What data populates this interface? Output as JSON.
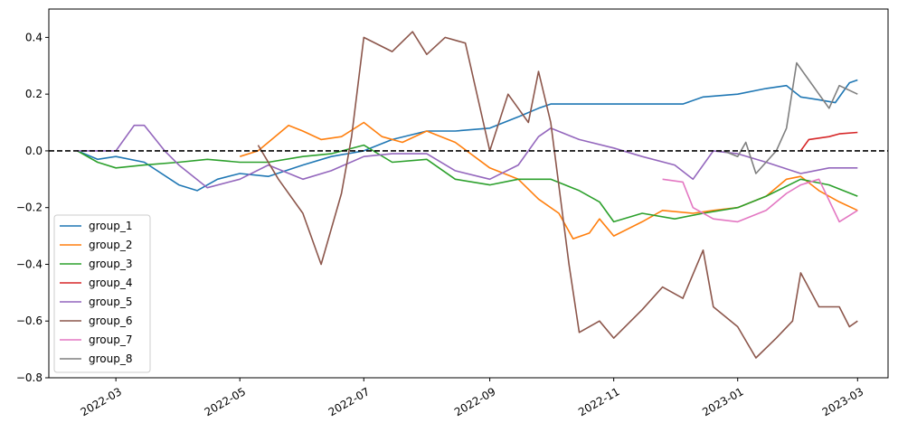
{
  "chart_data": {
    "type": "line",
    "title": "",
    "xlabel": "",
    "ylabel": "",
    "x_range": [
      "2022-01-27",
      "2023-03-16"
    ],
    "ylim": [
      -0.8,
      0.5
    ],
    "grid": false,
    "legend_position": "lower-left",
    "x_ticks": [
      {
        "date": "2022-03-01",
        "label": "2022-03"
      },
      {
        "date": "2022-05-01",
        "label": "2022-05"
      },
      {
        "date": "2022-07-01",
        "label": "2022-07"
      },
      {
        "date": "2022-09-01",
        "label": "2022-09"
      },
      {
        "date": "2022-11-01",
        "label": "2022-11"
      },
      {
        "date": "2023-01-01",
        "label": "2023-01"
      },
      {
        "date": "2023-03-01",
        "label": "2023-03"
      }
    ],
    "y_ticks": [
      {
        "value": 0.4,
        "label": "0.4"
      },
      {
        "value": 0.2,
        "label": "0.2"
      },
      {
        "value": 0.0,
        "label": "0.0"
      },
      {
        "value": -0.2,
        "label": "−0.2"
      },
      {
        "value": -0.4,
        "label": "−0.4"
      },
      {
        "value": -0.6,
        "label": "−0.6"
      },
      {
        "value": -0.8,
        "label": "−0.8"
      }
    ],
    "reference_line": {
      "value": 0.0,
      "style": "dashed",
      "color": "#000000"
    },
    "series": [
      {
        "name": "group_1",
        "color": "#1f77b4",
        "points": [
          [
            "2022-02-10",
            0.0
          ],
          [
            "2022-02-20",
            -0.03
          ],
          [
            "2022-03-01",
            -0.02
          ],
          [
            "2022-03-15",
            -0.04
          ],
          [
            "2022-04-01",
            -0.12
          ],
          [
            "2022-04-10",
            -0.14
          ],
          [
            "2022-04-20",
            -0.1
          ],
          [
            "2022-05-01",
            -0.08
          ],
          [
            "2022-05-15",
            -0.09
          ],
          [
            "2022-06-01",
            -0.05
          ],
          [
            "2022-06-15",
            -0.02
          ],
          [
            "2022-07-01",
            0.0
          ],
          [
            "2022-07-15",
            0.04
          ],
          [
            "2022-08-01",
            0.07
          ],
          [
            "2022-08-15",
            0.07
          ],
          [
            "2022-09-01",
            0.08
          ],
          [
            "2022-09-15",
            0.12
          ],
          [
            "2022-09-25",
            0.15
          ],
          [
            "2022-10-01",
            0.165
          ],
          [
            "2022-12-05",
            0.165
          ],
          [
            "2022-12-15",
            0.19
          ],
          [
            "2023-01-01",
            0.2
          ],
          [
            "2023-01-15",
            0.22
          ],
          [
            "2023-01-25",
            0.23
          ],
          [
            "2023-02-01",
            0.19
          ],
          [
            "2023-02-10",
            0.18
          ],
          [
            "2023-02-18",
            0.17
          ],
          [
            "2023-02-25",
            0.24
          ],
          [
            "2023-03-01",
            0.25
          ]
        ]
      },
      {
        "name": "group_2",
        "color": "#ff7f0e",
        "points": [
          [
            "2022-05-01",
            -0.02
          ],
          [
            "2022-05-10",
            0.0
          ],
          [
            "2022-05-20",
            0.06
          ],
          [
            "2022-05-25",
            0.09
          ],
          [
            "2022-06-01",
            0.07
          ],
          [
            "2022-06-10",
            0.04
          ],
          [
            "2022-06-20",
            0.05
          ],
          [
            "2022-07-01",
            0.1
          ],
          [
            "2022-07-10",
            0.05
          ],
          [
            "2022-07-20",
            0.03
          ],
          [
            "2022-08-01",
            0.07
          ],
          [
            "2022-08-15",
            0.03
          ],
          [
            "2022-09-01",
            -0.06
          ],
          [
            "2022-09-15",
            -0.1
          ],
          [
            "2022-09-25",
            -0.17
          ],
          [
            "2022-10-05",
            -0.22
          ],
          [
            "2022-10-12",
            -0.31
          ],
          [
            "2022-10-20",
            -0.29
          ],
          [
            "2022-10-25",
            -0.24
          ],
          [
            "2022-11-01",
            -0.3
          ],
          [
            "2022-11-15",
            -0.25
          ],
          [
            "2022-11-25",
            -0.21
          ],
          [
            "2022-12-10",
            -0.22
          ],
          [
            "2022-12-20",
            -0.21
          ],
          [
            "2023-01-01",
            -0.2
          ],
          [
            "2023-01-15",
            -0.16
          ],
          [
            "2023-01-25",
            -0.1
          ],
          [
            "2023-02-01",
            -0.09
          ],
          [
            "2023-02-10",
            -0.14
          ],
          [
            "2023-02-20",
            -0.18
          ],
          [
            "2023-03-01",
            -0.21
          ]
        ]
      },
      {
        "name": "group_3",
        "color": "#2ca02c",
        "points": [
          [
            "2022-02-10",
            0.0
          ],
          [
            "2022-02-20",
            -0.04
          ],
          [
            "2022-03-01",
            -0.06
          ],
          [
            "2022-03-15",
            -0.05
          ],
          [
            "2022-04-01",
            -0.04
          ],
          [
            "2022-04-15",
            -0.03
          ],
          [
            "2022-05-01",
            -0.04
          ],
          [
            "2022-05-15",
            -0.04
          ],
          [
            "2022-06-01",
            -0.02
          ],
          [
            "2022-06-15",
            -0.01
          ],
          [
            "2022-07-01",
            0.02
          ],
          [
            "2022-07-15",
            -0.04
          ],
          [
            "2022-08-01",
            -0.03
          ],
          [
            "2022-08-15",
            -0.1
          ],
          [
            "2022-09-01",
            -0.12
          ],
          [
            "2022-09-15",
            -0.1
          ],
          [
            "2022-10-01",
            -0.1
          ],
          [
            "2022-10-15",
            -0.14
          ],
          [
            "2022-10-25",
            -0.18
          ],
          [
            "2022-11-01",
            -0.25
          ],
          [
            "2022-11-15",
            -0.22
          ],
          [
            "2022-12-01",
            -0.24
          ],
          [
            "2022-12-15",
            -0.22
          ],
          [
            "2023-01-01",
            -0.2
          ],
          [
            "2023-01-15",
            -0.16
          ],
          [
            "2023-02-01",
            -0.1
          ],
          [
            "2023-02-15",
            -0.12
          ],
          [
            "2023-03-01",
            -0.16
          ]
        ]
      },
      {
        "name": "group_4",
        "color": "#d62728",
        "points": [
          [
            "2023-02-01",
            0.0
          ],
          [
            "2023-02-05",
            0.04
          ],
          [
            "2023-02-15",
            0.05
          ],
          [
            "2023-02-20",
            0.06
          ],
          [
            "2023-03-01",
            0.065
          ]
        ]
      },
      {
        "name": "group_5",
        "color": "#9467bd",
        "points": [
          [
            "2022-02-10",
            0.0
          ],
          [
            "2022-03-01",
            0.0
          ],
          [
            "2022-03-10",
            0.09
          ],
          [
            "2022-03-15",
            0.09
          ],
          [
            "2022-03-25",
            0.0
          ],
          [
            "2022-04-01",
            -0.05
          ],
          [
            "2022-04-15",
            -0.13
          ],
          [
            "2022-05-01",
            -0.1
          ],
          [
            "2022-05-15",
            -0.05
          ],
          [
            "2022-06-01",
            -0.1
          ],
          [
            "2022-06-15",
            -0.07
          ],
          [
            "2022-07-01",
            -0.02
          ],
          [
            "2022-07-15",
            -0.01
          ],
          [
            "2022-08-01",
            -0.01
          ],
          [
            "2022-08-15",
            -0.07
          ],
          [
            "2022-09-01",
            -0.1
          ],
          [
            "2022-09-15",
            -0.05
          ],
          [
            "2022-09-25",
            0.05
          ],
          [
            "2022-10-01",
            0.08
          ],
          [
            "2022-10-15",
            0.04
          ],
          [
            "2022-11-01",
            0.01
          ],
          [
            "2022-11-15",
            -0.02
          ],
          [
            "2022-12-01",
            -0.05
          ],
          [
            "2022-12-10",
            -0.1
          ],
          [
            "2022-12-20",
            0.0
          ],
          [
            "2023-01-01",
            -0.01
          ],
          [
            "2023-01-15",
            -0.04
          ],
          [
            "2023-02-01",
            -0.08
          ],
          [
            "2023-02-15",
            -0.06
          ],
          [
            "2023-03-01",
            -0.06
          ]
        ]
      },
      {
        "name": "group_6",
        "color": "#8c564b",
        "points": [
          [
            "2022-05-10",
            0.02
          ],
          [
            "2022-05-20",
            -0.1
          ],
          [
            "2022-06-01",
            -0.22
          ],
          [
            "2022-06-10",
            -0.4
          ],
          [
            "2022-06-20",
            -0.15
          ],
          [
            "2022-06-25",
            0.05
          ],
          [
            "2022-07-01",
            0.4
          ],
          [
            "2022-07-15",
            0.35
          ],
          [
            "2022-07-25",
            0.42
          ],
          [
            "2022-08-01",
            0.34
          ],
          [
            "2022-08-10",
            0.4
          ],
          [
            "2022-08-20",
            0.38
          ],
          [
            "2022-09-01",
            0.0
          ],
          [
            "2022-09-10",
            0.2
          ],
          [
            "2022-09-20",
            0.1
          ],
          [
            "2022-09-25",
            0.28
          ],
          [
            "2022-10-01",
            0.1
          ],
          [
            "2022-10-10",
            -0.4
          ],
          [
            "2022-10-15",
            -0.64
          ],
          [
            "2022-10-25",
            -0.6
          ],
          [
            "2022-11-01",
            -0.66
          ],
          [
            "2022-11-15",
            -0.56
          ],
          [
            "2022-11-25",
            -0.48
          ],
          [
            "2022-12-05",
            -0.52
          ],
          [
            "2022-12-15",
            -0.35
          ],
          [
            "2022-12-20",
            -0.55
          ],
          [
            "2023-01-01",
            -0.62
          ],
          [
            "2023-01-10",
            -0.73
          ],
          [
            "2023-01-20",
            -0.66
          ],
          [
            "2023-01-28",
            -0.6
          ],
          [
            "2023-02-01",
            -0.43
          ],
          [
            "2023-02-10",
            -0.55
          ],
          [
            "2023-02-20",
            -0.55
          ],
          [
            "2023-02-25",
            -0.62
          ],
          [
            "2023-03-01",
            -0.6
          ]
        ]
      },
      {
        "name": "group_7",
        "color": "#e377c2",
        "points": [
          [
            "2022-11-25",
            -0.1
          ],
          [
            "2022-12-05",
            -0.11
          ],
          [
            "2022-12-10",
            -0.2
          ],
          [
            "2022-12-20",
            -0.24
          ],
          [
            "2023-01-01",
            -0.25
          ],
          [
            "2023-01-15",
            -0.21
          ],
          [
            "2023-01-25",
            -0.15
          ],
          [
            "2023-02-01",
            -0.12
          ],
          [
            "2023-02-10",
            -0.1
          ],
          [
            "2023-02-20",
            -0.25
          ],
          [
            "2023-03-01",
            -0.21
          ]
        ]
      },
      {
        "name": "group_8",
        "color": "#7f7f7f",
        "points": [
          [
            "2022-12-25",
            0.0
          ],
          [
            "2023-01-01",
            -0.02
          ],
          [
            "2023-01-05",
            0.03
          ],
          [
            "2023-01-10",
            -0.08
          ],
          [
            "2023-01-20",
            0.0
          ],
          [
            "2023-01-25",
            0.08
          ],
          [
            "2023-01-30",
            0.31
          ],
          [
            "2023-02-05",
            0.25
          ],
          [
            "2023-02-10",
            0.2
          ],
          [
            "2023-02-15",
            0.15
          ],
          [
            "2023-02-20",
            0.23
          ],
          [
            "2023-03-01",
            0.2
          ]
        ]
      }
    ]
  }
}
